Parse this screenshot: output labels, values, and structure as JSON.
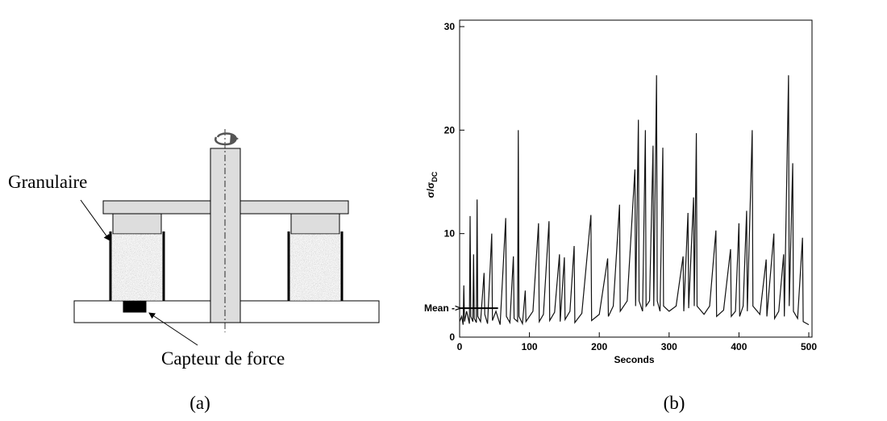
{
  "diagram": {
    "labels": [
      "Granulaire",
      "Capteur de force"
    ]
  },
  "captions": [
    "(a)",
    "(b)"
  ],
  "chart_data": {
    "type": "line",
    "xlabel": "Seconds",
    "ylabel": {
      "text": "σ/σ",
      "subscript": "DC"
    },
    "annotation": {
      "text": "Mean ->",
      "value": 2.8,
      "x_end": 55
    },
    "color": "#111111",
    "xlim": [
      0,
      500
    ],
    "xticks": [
      0,
      100,
      200,
      300,
      400,
      500
    ],
    "ylim": [
      0,
      30
    ],
    "yticks": [
      0,
      10,
      20,
      30
    ],
    "x": [
      0,
      3,
      5,
      6,
      7,
      10,
      14,
      15,
      16,
      19,
      20,
      21,
      24,
      25,
      26,
      30,
      35,
      36,
      40,
      46,
      47,
      52,
      58,
      66,
      67,
      72,
      77,
      78,
      83,
      84,
      85,
      90,
      94,
      95,
      105,
      113,
      114,
      120,
      128,
      129,
      136,
      143,
      144,
      150,
      151,
      158,
      164,
      165,
      175,
      188,
      189,
      200,
      212,
      213,
      220,
      229,
      230,
      240,
      251,
      252,
      256,
      257,
      262,
      266,
      267,
      272,
      277,
      278,
      282,
      283,
      287,
      291,
      292,
      300,
      310,
      320,
      321,
      327,
      328,
      335,
      336,
      339,
      340,
      350,
      358,
      367,
      368,
      378,
      388,
      389,
      395,
      400,
      401,
      406,
      411,
      412,
      419,
      420,
      430,
      439,
      440,
      450,
      451,
      457,
      464,
      465,
      471,
      472,
      477,
      478,
      484,
      491,
      492,
      500
    ],
    "values": [
      1.5,
      2,
      1.2,
      5,
      1.5,
      2.5,
      1.3,
      11.7,
      2,
      1.5,
      8,
      1.8,
      1.4,
      13.3,
      2,
      1.5,
      6.2,
      2.2,
      1.3,
      10,
      1.6,
      2.5,
      1.2,
      11.5,
      2,
      1.4,
      7.8,
      1.8,
      1.5,
      20,
      2,
      1.3,
      4.5,
      1.5,
      2.5,
      11,
      1.5,
      2.2,
      11.2,
      1.6,
      2.4,
      8,
      1.5,
      7.7,
      1.7,
      2.5,
      8.8,
      1.4,
      2.3,
      11.8,
      1.6,
      2.2,
      7.6,
      2,
      3,
      12.8,
      2.5,
      3.5,
      16.2,
      3,
      21,
      3.5,
      2.5,
      20,
      3,
      3.5,
      18.5,
      3,
      25.3,
      3.5,
      2.5,
      18.3,
      3,
      2.5,
      3,
      7.8,
      2.5,
      12,
      2.8,
      13.5,
      3,
      19.7,
      3,
      2.2,
      3,
      10.3,
      2,
      2.6,
      8.5,
      2,
      2.5,
      11,
      2,
      3,
      12.2,
      2.5,
      20,
      3,
      2.2,
      7.5,
      2,
      10,
      1.8,
      2.5,
      8,
      2,
      25.3,
      3,
      16.8,
      2.5,
      1.8,
      9.6,
      1.5,
      1.2
    ]
  }
}
